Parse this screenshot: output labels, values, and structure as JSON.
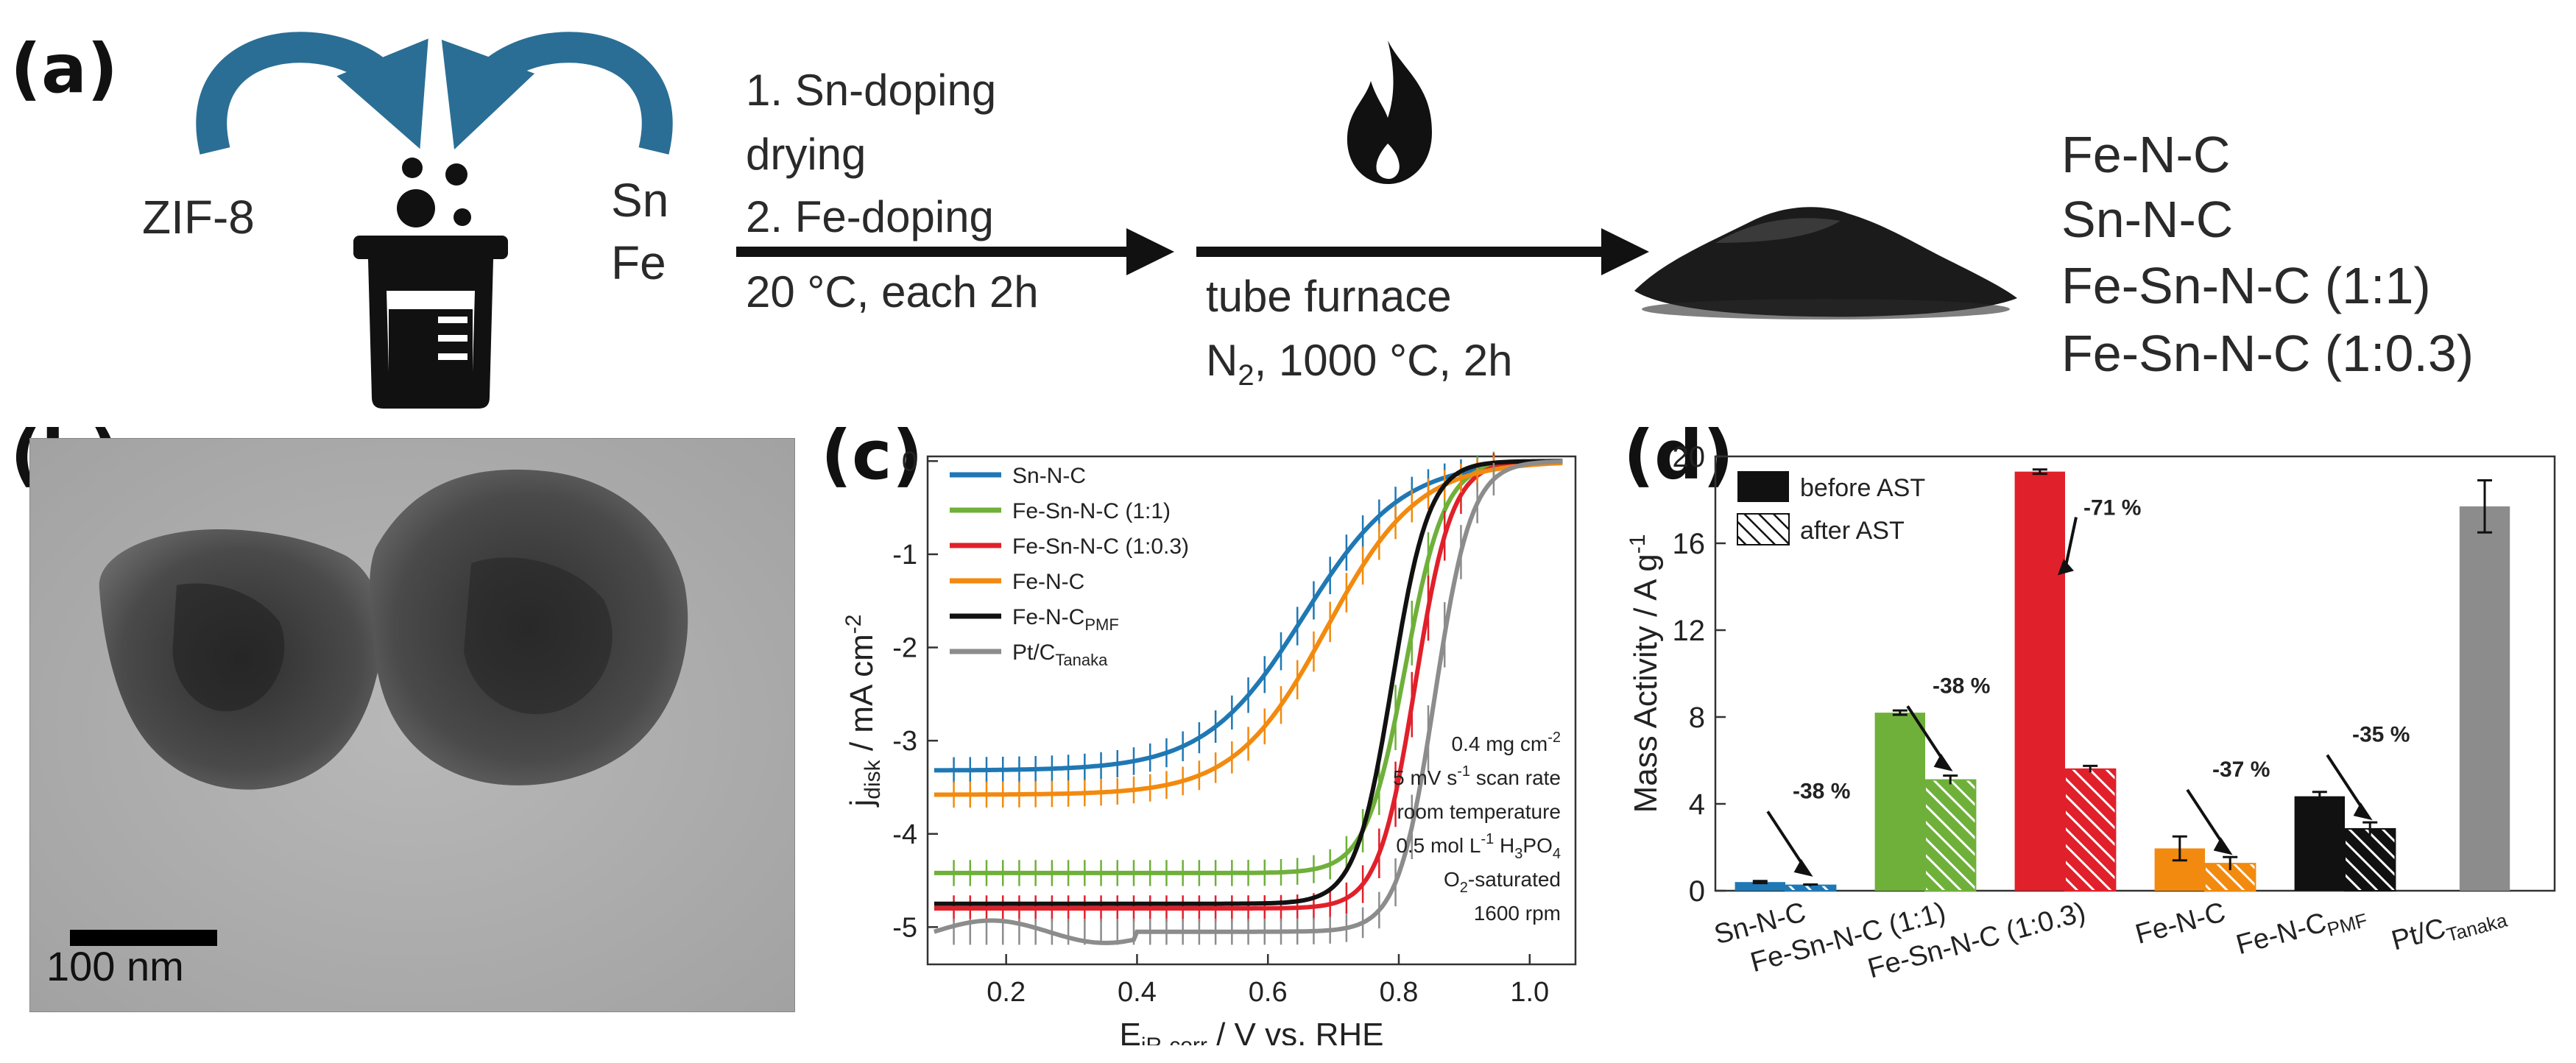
{
  "panels": {
    "a": "(a)",
    "b": "(b)",
    "c": "(c)",
    "d": "(d)"
  },
  "schematic": {
    "left_reagent": "ZIF-8",
    "right_reagent_1": "Sn",
    "right_reagent_2": "Fe",
    "step1_line1": "1. Sn-doping",
    "step1_line2": "drying",
    "step1_line3": "2. Fe-doping",
    "step1_line4": "20 °C, each 2h",
    "step2_line1": "tube furnace",
    "step2_gas": "N",
    "step2_gas_sub": "2",
    "step2_rest": ", 1000 °C, 2h",
    "products": [
      "Fe-N-C",
      "Sn-N-C",
      "Fe-Sn-N-C (1:1)",
      "Fe-Sn-N-C (1:0.3)"
    ],
    "arrow_color": "#2a6e95"
  },
  "tem": {
    "scale_label": "100 nm"
  },
  "chart_data": [
    {
      "type": "line",
      "title": "",
      "xlabel_main": "E",
      "xlabel_sub": "iR-corr",
      "xlabel_rest": " / V vs. RHE",
      "ylabel_main": "j",
      "ylabel_sub": "disk",
      "ylabel_rest": " / mA cm",
      "ylabel_sup": "-2",
      "xlim": [
        0.08,
        1.07
      ],
      "ylim": [
        -5.4,
        0.05
      ],
      "xticks": [
        0.2,
        0.4,
        0.6,
        0.8,
        1.0
      ],
      "xtick_labels": [
        "0.2",
        "0.4",
        "0.6",
        "0.8",
        "1.0"
      ],
      "yticks": [
        0,
        -1,
        -2,
        -3,
        -4,
        -5
      ],
      "ytick_labels": [
        "0",
        "-1",
        "-2",
        "-3",
        "-4",
        "-5"
      ],
      "series": [
        {
          "name": "Sn-N-C",
          "color": "#1f78b4",
          "jlim": -3.32,
          "e_half": 0.655,
          "width": 0.075,
          "errorbars": true
        },
        {
          "name": "Fe-Sn-N-C (1:1)",
          "color": "#6fb03a",
          "jlim": -4.42,
          "e_half": 0.81,
          "width": 0.03,
          "errorbars": true
        },
        {
          "name": "Fe-Sn-N-C (1:0.3)",
          "color": "#e0202a",
          "jlim": -4.8,
          "e_half": 0.825,
          "width": 0.028,
          "errorbars": true
        },
        {
          "name": "Fe-N-C",
          "color": "#f28a0f",
          "jlim": -3.58,
          "e_half": 0.69,
          "width": 0.07,
          "errorbars": true
        },
        {
          "name": "Fe-N-C",
          "name_sub": "PMF",
          "color": "#111111",
          "jlim": -4.75,
          "e_half": 0.79,
          "width": 0.028,
          "errorbars": false
        },
        {
          "name": "Pt/C",
          "name_sub": "Tanaka",
          "color": "#8c8c8c",
          "jlim": -5.05,
          "e_half": 0.855,
          "width": 0.028,
          "errorbars": true
        }
      ],
      "conditions": [
        "0.4 mg cm",
        "-2",
        "5 mV s",
        "-1",
        " scan rate",
        "room temperature",
        "0.5 mol L",
        "-1",
        " H",
        "3",
        "PO",
        "4",
        "O",
        "2",
        "-saturated",
        "1600 rpm"
      ],
      "conditions_text": {
        "loading": "0.4 mg cm",
        "loading_sup": "-2",
        "scan": "5 mV s",
        "scan_sup": "-1",
        "scan_rest": " scan rate",
        "temp": "room temperature",
        "elec": "0.5 mol L",
        "elec_sup": "-1",
        "elec_h": " H",
        "elec_sub3": "3",
        "elec_po": "PO",
        "elec_sub4": "4",
        "gas": "O",
        "gas_sub": "2",
        "gas_rest": "-saturated",
        "rpm": "1600 rpm"
      }
    },
    {
      "type": "bar",
      "title": "",
      "ylabel_main": "Mass Activity / A g",
      "ylabel_sup": "-1",
      "ylim": [
        0,
        20
      ],
      "yticks": [
        0,
        4,
        8,
        12,
        16,
        20
      ],
      "ytick_labels": [
        "0",
        "4",
        "8",
        "12",
        "16",
        "20"
      ],
      "legend": {
        "before": "before AST",
        "after": "after AST"
      },
      "categories": [
        {
          "label": "Sn-N-C",
          "color": "#1f78b4",
          "before": 0.4,
          "before_err": 0.05,
          "after": 0.25,
          "after_err": 0.04,
          "change": "-38 %"
        },
        {
          "label": "Fe-Sn-N-C (1:1)",
          "color": "#6fb03a",
          "before": 8.2,
          "before_err": 0.1,
          "after": 5.1,
          "after_err": 0.2,
          "change": "-38 %"
        },
        {
          "label": "Fe-Sn-N-C (1:0.3)",
          "color": "#e0202a",
          "before": 19.3,
          "before_err": 0.1,
          "after": 5.6,
          "after_err": 0.15,
          "change": "-71 %"
        },
        {
          "label": "Fe-N-C",
          "color": "#f28a0f",
          "before": 1.95,
          "before_err": 0.55,
          "after": 1.25,
          "after_err": 0.3,
          "change": "-37 %"
        },
        {
          "label": "Fe-N-C",
          "label_sub": "PMF",
          "color": "#111111",
          "before": 4.35,
          "before_err": 0.2,
          "after": 2.85,
          "after_err": 0.3,
          "change": "-35 %"
        },
        {
          "label": "Pt/C",
          "label_sub": "Tanaka",
          "color": "#8c8c8c",
          "before": 17.7,
          "before_err": 1.2,
          "after": null,
          "after_err": null,
          "change": ""
        }
      ]
    }
  ]
}
